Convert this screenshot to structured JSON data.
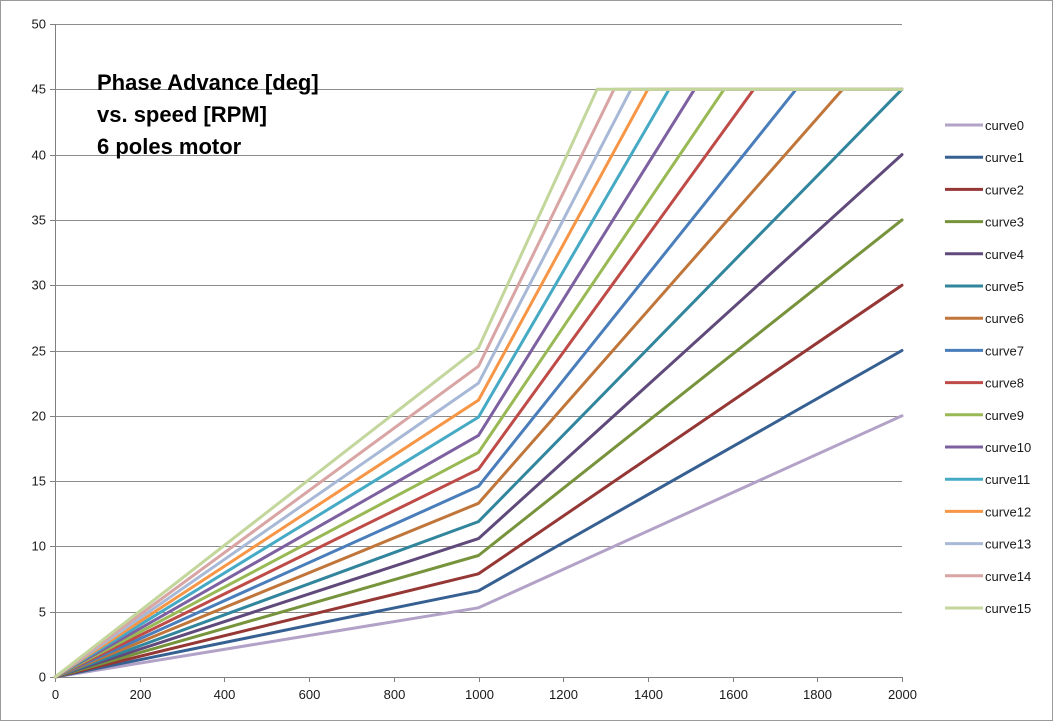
{
  "chart_data": {
    "type": "line",
    "title_lines": [
      "Phase Advance [deg]",
      "vs. speed [RPM]",
      "6 poles motor"
    ],
    "xlabel": "",
    "ylabel": "",
    "xlim": [
      0,
      2000
    ],
    "ylim": [
      0,
      50
    ],
    "x_ticks": [
      0,
      200,
      400,
      600,
      800,
      1000,
      1200,
      1400,
      1600,
      1800,
      2000
    ],
    "y_ticks": [
      0,
      5,
      10,
      15,
      20,
      25,
      30,
      35,
      40,
      45,
      50
    ],
    "grid": "horizontal",
    "legend_position": "right",
    "series": [
      {
        "name": "curve0",
        "color": "#b3a2c7",
        "points": [
          [
            0,
            0
          ],
          [
            1000,
            5.3
          ],
          [
            2000,
            20
          ]
        ]
      },
      {
        "name": "curve1",
        "color": "#376092",
        "points": [
          [
            0,
            0
          ],
          [
            1000,
            6.6
          ],
          [
            2000,
            25
          ]
        ]
      },
      {
        "name": "curve2",
        "color": "#953735",
        "points": [
          [
            0,
            0
          ],
          [
            1000,
            7.9
          ],
          [
            2000,
            30
          ]
        ]
      },
      {
        "name": "curve3",
        "color": "#77933c",
        "points": [
          [
            0,
            0
          ],
          [
            1000,
            9.3
          ],
          [
            2000,
            35
          ]
        ]
      },
      {
        "name": "curve4",
        "color": "#604a7b",
        "points": [
          [
            0,
            0
          ],
          [
            1000,
            10.6
          ],
          [
            2000,
            40
          ]
        ]
      },
      {
        "name": "curve5",
        "color": "#31859c",
        "points": [
          [
            0,
            0
          ],
          [
            1000,
            11.9
          ],
          [
            2000,
            45
          ]
        ]
      },
      {
        "name": "curve6",
        "color": "#c0763a",
        "points": [
          [
            0,
            0
          ],
          [
            1000,
            13.3
          ],
          [
            1860,
            45
          ],
          [
            2000,
            45
          ]
        ]
      },
      {
        "name": "curve7",
        "color": "#4a7ebb",
        "points": [
          [
            0,
            0
          ],
          [
            1000,
            14.6
          ],
          [
            1750,
            45
          ],
          [
            2000,
            45
          ]
        ]
      },
      {
        "name": "curve8",
        "color": "#be4b48",
        "points": [
          [
            0,
            0
          ],
          [
            1000,
            15.9
          ],
          [
            1650,
            45
          ],
          [
            2000,
            45
          ]
        ]
      },
      {
        "name": "curve9",
        "color": "#98b954",
        "points": [
          [
            0,
            0
          ],
          [
            1000,
            17.2
          ],
          [
            1580,
            45
          ],
          [
            2000,
            45
          ]
        ]
      },
      {
        "name": "curve10",
        "color": "#7d60a0",
        "points": [
          [
            0,
            0
          ],
          [
            1000,
            18.5
          ],
          [
            1510,
            45
          ],
          [
            2000,
            45
          ]
        ]
      },
      {
        "name": "curve11",
        "color": "#46aac5",
        "points": [
          [
            0,
            0
          ],
          [
            1000,
            19.9
          ],
          [
            1450,
            45
          ],
          [
            2000,
            45
          ]
        ]
      },
      {
        "name": "curve12",
        "color": "#f79646",
        "points": [
          [
            0,
            0
          ],
          [
            1000,
            21.2
          ],
          [
            1400,
            45
          ],
          [
            2000,
            45
          ]
        ]
      },
      {
        "name": "curve13",
        "color": "#a7b9d6",
        "points": [
          [
            0,
            0
          ],
          [
            1000,
            22.5
          ],
          [
            1360,
            45
          ],
          [
            2000,
            45
          ]
        ]
      },
      {
        "name": "curve14",
        "color": "#d9a5a4",
        "points": [
          [
            0,
            0
          ],
          [
            1000,
            23.8
          ],
          [
            1320,
            45
          ],
          [
            2000,
            45
          ]
        ]
      },
      {
        "name": "curve15",
        "color": "#c3d69b",
        "points": [
          [
            0,
            0
          ],
          [
            1000,
            25.2
          ],
          [
            1280,
            45
          ],
          [
            2000,
            45
          ]
        ]
      }
    ]
  }
}
